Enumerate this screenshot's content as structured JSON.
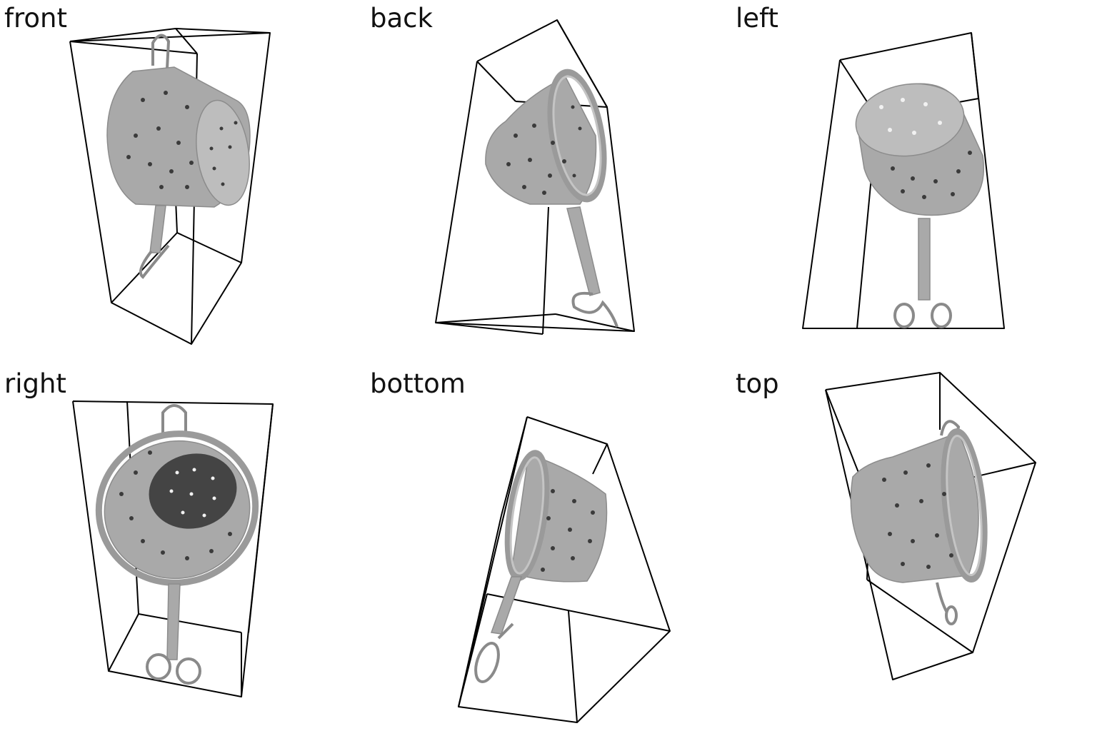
{
  "views": [
    {
      "id": "front",
      "label": "front"
    },
    {
      "id": "back",
      "label": "back"
    },
    {
      "id": "left",
      "label": "left"
    },
    {
      "id": "right",
      "label": "right"
    },
    {
      "id": "bottom",
      "label": "bottom"
    },
    {
      "id": "top",
      "label": "top"
    }
  ]
}
